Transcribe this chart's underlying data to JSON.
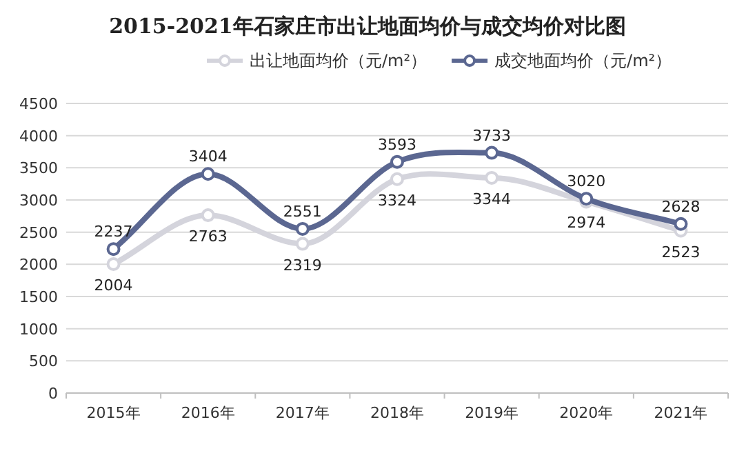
{
  "chart_data": {
    "type": "line",
    "title": "2015-2021年石家庄市出让地面均价与成交均价对比图",
    "categories": [
      "2015年",
      "2016年",
      "2017年",
      "2018年",
      "2019年",
      "2020年",
      "2021年"
    ],
    "series": [
      {
        "name": "出让地面均价（元/m²）",
        "color": "#d4d4dc",
        "values": [
          2004,
          2763,
          2319,
          3324,
          3344,
          2974,
          2523
        ]
      },
      {
        "name": "成交地面均价（元/m²）",
        "color": "#5b6791",
        "values": [
          2237,
          3404,
          2551,
          3593,
          3733,
          3020,
          2628
        ]
      }
    ],
    "ylim": [
      0,
      4500
    ],
    "yticks": [
      0,
      500,
      1000,
      1500,
      2000,
      2500,
      3000,
      3500,
      4000,
      4500
    ],
    "grid": "y",
    "legend": "top",
    "marker": "circle",
    "line_style": "solid",
    "data_labels": true
  }
}
